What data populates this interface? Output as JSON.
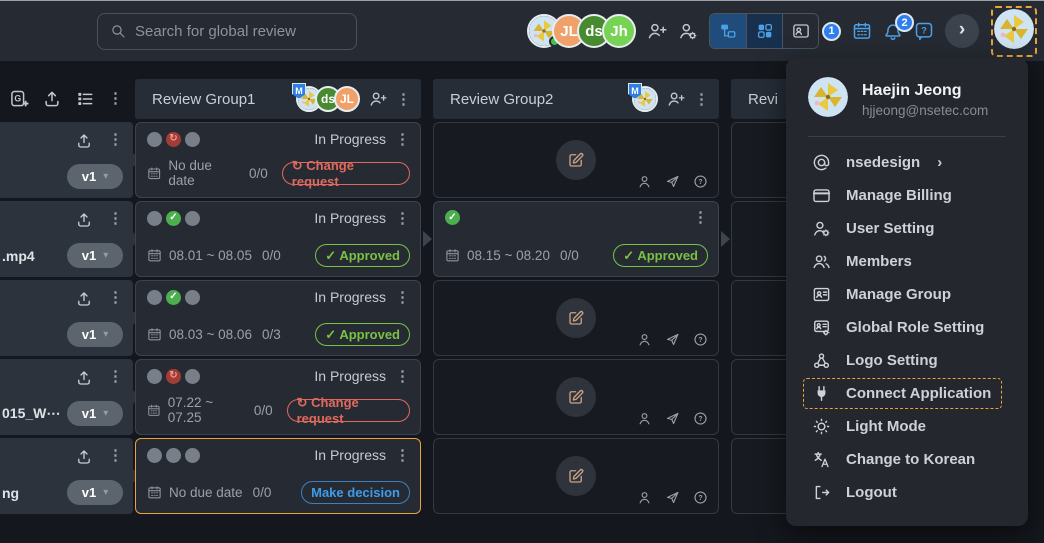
{
  "topbar": {
    "search": {
      "placeholder": "Search for global review"
    },
    "member_avatars": [
      {
        "kind": "pinwheel",
        "online": true
      },
      {
        "kind": "initials",
        "label": "JL",
        "bg": "#f0a169"
      },
      {
        "kind": "initials",
        "label": "ds",
        "bg": "#478a30"
      },
      {
        "kind": "initials",
        "label": "Jh",
        "bg": "#76d353"
      }
    ],
    "badges": {
      "card_view": "1",
      "notifications": "2"
    },
    "profile_avatar": {
      "kind": "pinwheel"
    }
  },
  "asset_panel": {
    "rows": [
      {
        "filename": "",
        "version": "v1"
      },
      {
        "filename": ".mp4",
        "version": "v1"
      },
      {
        "filename": "",
        "version": "v1"
      },
      {
        "filename": "015_W⋯",
        "version": "v1"
      },
      {
        "filename": "ng",
        "version": "v1"
      }
    ]
  },
  "groups": [
    {
      "title": "Review Group1",
      "avatars": [
        {
          "kind": "pinwheel",
          "badge": "M"
        },
        {
          "kind": "initials",
          "label": "ds",
          "bg": "#478a30"
        },
        {
          "kind": "initials",
          "label": "JL",
          "bg": "#f0a169"
        }
      ],
      "cards": [
        {
          "type": "review",
          "dots": [
            "pending",
            "change",
            "pending"
          ],
          "status": "In Progress",
          "due": "No due date",
          "count": "0/0",
          "badge": {
            "label": "Change request",
            "kind": "change"
          }
        },
        {
          "type": "review",
          "dots": [
            "pending",
            "approved",
            "pending"
          ],
          "status": "In Progress",
          "due": "08.01 ~ 08.05",
          "count": "0/0",
          "badge": {
            "label": "Approved",
            "kind": "approved"
          },
          "chained": true
        },
        {
          "type": "review",
          "dots": [
            "pending",
            "approved",
            "pending"
          ],
          "status": "In Progress",
          "due": "08.03 ~ 08.06",
          "count": "0/3",
          "badge": {
            "label": "Approved",
            "kind": "approved"
          }
        },
        {
          "type": "review",
          "dots": [
            "pending",
            "change",
            "pending"
          ],
          "status": "In Progress",
          "due": "07.22 ~ 07.25",
          "count": "0/0",
          "badge": {
            "label": "Change request",
            "kind": "change"
          }
        },
        {
          "type": "review",
          "dots": [
            "pending",
            "pending",
            "pending"
          ],
          "status": "In Progress",
          "due": "No due date",
          "count": "0/0",
          "badge": {
            "label": "Make decision",
            "kind": "decision"
          },
          "selected": true
        }
      ]
    },
    {
      "title": "Review Group2",
      "avatars": [
        {
          "kind": "pinwheel",
          "badge": "M"
        }
      ],
      "cards": [
        {
          "type": "empty"
        },
        {
          "type": "review",
          "dots": [
            "approved"
          ],
          "status": "",
          "due": "08.15 ~ 08.20",
          "count": "0/0",
          "badge": {
            "label": "Approved",
            "kind": "approved"
          },
          "chained": true
        },
        {
          "type": "empty"
        },
        {
          "type": "empty"
        },
        {
          "type": "empty"
        }
      ]
    },
    {
      "title": "Revi",
      "avatars": [],
      "cards": [
        {
          "type": "bare"
        },
        {
          "type": "bare"
        },
        {
          "type": "bare"
        },
        {
          "type": "bare"
        },
        {
          "type": "bare"
        }
      ]
    }
  ],
  "menu": {
    "user": {
      "name": "Haejin Jeong",
      "email": "hjjeong@nsetec.com"
    },
    "items": [
      {
        "icon": "at",
        "label": "nsedesign",
        "chevron": true
      },
      {
        "icon": "billing",
        "label": "Manage Billing"
      },
      {
        "icon": "userGear",
        "label": "User Setting"
      },
      {
        "icon": "members",
        "label": "Members"
      },
      {
        "icon": "group",
        "label": "Manage Group"
      },
      {
        "icon": "role",
        "label": "Global Role Setting"
      },
      {
        "icon": "logo",
        "label": "Logo Setting"
      },
      {
        "icon": "plug",
        "label": "Connect Application",
        "highlighted": true
      },
      {
        "icon": "sun",
        "label": "Light Mode"
      },
      {
        "icon": "translate",
        "label": "Change to Korean"
      },
      {
        "icon": "logout",
        "label": "Logout"
      }
    ]
  },
  "colors": {
    "accent_orange": "#e8a33d",
    "approved_green": "#78c244",
    "change_red": "#e0695d",
    "decision_blue": "#3f9bea",
    "badge_blue": "#2d7ff0",
    "topbar_bg": "#262b33",
    "board_bg": "#14171d",
    "card_bg": "#262b33",
    "menu_bg": "#24272e"
  }
}
